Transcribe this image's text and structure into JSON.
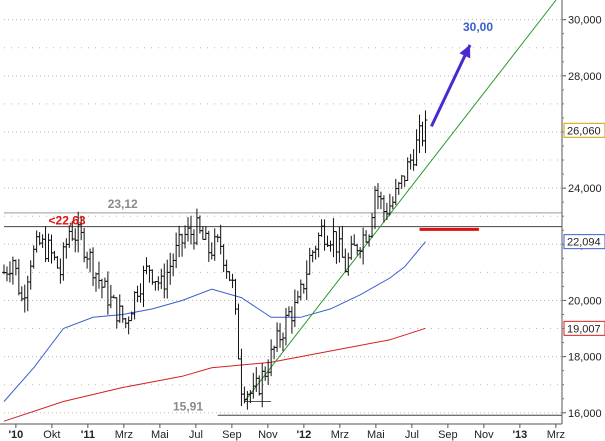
{
  "chart_data": {
    "type": "candlestick",
    "title": "",
    "xlabel": "",
    "ylabel": "",
    "ylim": [
      15600,
      30700
    ],
    "y_ticks": [
      16000,
      18000,
      20000,
      22000,
      24000,
      26000,
      28000,
      30000
    ],
    "y_tick_labels": [
      "16,000",
      "18,000",
      "20,000",
      "22,000",
      "24,000",
      "26,000",
      "28,000",
      "30,000"
    ],
    "grid": "horizontal-dotted",
    "x_tick_labels": [
      {
        "label": "'10",
        "bold": true
      },
      {
        "label": "Okt",
        "bold": false
      },
      {
        "label": "'11",
        "bold": true
      },
      {
        "label": "Mrz",
        "bold": false
      },
      {
        "label": "Mai",
        "bold": false
      },
      {
        "label": "Jul",
        "bold": false
      },
      {
        "label": "Sep",
        "bold": false
      },
      {
        "label": "Nov",
        "bold": false
      },
      {
        "label": "'12",
        "bold": true
      },
      {
        "label": "Mrz",
        "bold": false
      },
      {
        "label": "Mai",
        "bold": false
      },
      {
        "label": "Jul",
        "bold": false
      },
      {
        "label": "Sep",
        "bold": false
      },
      {
        "label": "Nov",
        "bold": false
      },
      {
        "label": "'13",
        "bold": true
      },
      {
        "label": "Mrz",
        "bold": false
      }
    ],
    "price_anchors": [
      [
        0,
        21000
      ],
      [
        3,
        21500
      ],
      [
        6,
        20000
      ],
      [
        9,
        21500
      ],
      [
        12,
        22000
      ],
      [
        15,
        21800
      ],
      [
        19,
        21000
      ],
      [
        22,
        22500
      ],
      [
        26,
        22200
      ],
      [
        29,
        21500
      ],
      [
        33,
        20500
      ],
      [
        37,
        19800
      ],
      [
        41,
        19200
      ],
      [
        45,
        20500
      ],
      [
        49,
        21200
      ],
      [
        53,
        20500
      ],
      [
        57,
        21500
      ],
      [
        61,
        22300
      ],
      [
        65,
        22500
      ],
      [
        69,
        21800
      ],
      [
        73,
        22000
      ],
      [
        77,
        20500
      ],
      [
        80,
        17000
      ],
      [
        84,
        16600
      ],
      [
        88,
        17500
      ],
      [
        92,
        18500
      ],
      [
        96,
        19500
      ],
      [
        99,
        19800
      ],
      [
        103,
        21500
      ],
      [
        107,
        22500
      ],
      [
        111,
        22300
      ],
      [
        115,
        21200
      ],
      [
        119,
        22000
      ],
      [
        123,
        22600
      ],
      [
        125,
        24000
      ],
      [
        128,
        23200
      ],
      [
        131,
        23500
      ],
      [
        134,
        24200
      ],
      [
        137,
        25000
      ],
      [
        140,
        25800
      ],
      [
        142,
        26060
      ]
    ],
    "series": [
      {
        "name": "",
        "color": "#3a5fcd",
        "values": [
          [
            0,
            16400
          ],
          [
            10,
            17600
          ],
          [
            20,
            19000
          ],
          [
            30,
            19400
          ],
          [
            40,
            19500
          ],
          [
            50,
            19700
          ],
          [
            60,
            20000
          ],
          [
            70,
            20400
          ],
          [
            80,
            20100
          ],
          [
            90,
            19400
          ],
          [
            100,
            19400
          ],
          [
            110,
            19700
          ],
          [
            120,
            20200
          ],
          [
            130,
            20800
          ],
          [
            135,
            21200
          ],
          [
            142,
            22094
          ]
        ]
      },
      {
        "name": "",
        "color": "#d42020",
        "values": [
          [
            0,
            15700
          ],
          [
            20,
            16400
          ],
          [
            40,
            16900
          ],
          [
            60,
            17300
          ],
          [
            70,
            17600
          ],
          [
            90,
            17800
          ],
          [
            110,
            18200
          ],
          [
            130,
            18600
          ],
          [
            142,
            19007
          ]
        ]
      }
    ],
    "horizontal_lines": [
      {
        "value": 23120,
        "x_start": 0,
        "x_end": 188,
        "color": "#9a9a9a"
      },
      {
        "value": 22630,
        "x_start": 0,
        "x_end": 188,
        "color": "#444444"
      },
      {
        "value": 15910,
        "x_start": 72,
        "x_end": 188,
        "color": "#444444"
      }
    ],
    "trendline": {
      "color": "#2a9a2a",
      "x_start": 81,
      "y_start": 16400,
      "x_end": 186,
      "y_end": 30700
    },
    "support_marker": {
      "value": 22530,
      "x_start": 140,
      "x_end": 160,
      "color": "#e01010"
    },
    "target_arrow": {
      "x_start": 144,
      "y_start": 26200,
      "x_end": 157,
      "y_end": 29100,
      "color": "#4a2ad0",
      "label": "30,00"
    },
    "value_badges": [
      {
        "value": 26060,
        "label": "26,060",
        "bg": "#ffffff",
        "border": "#d0a000",
        "color": "#222222"
      },
      {
        "value": 22094,
        "label": "22,094",
        "bg": "#ffffff",
        "border": "#3a5fcd",
        "color": "#1c3fa0"
      },
      {
        "value": 19007,
        "label": "19,007",
        "bg": "#ffffff",
        "border": "#d42020",
        "color": "#cc0000"
      }
    ],
    "annotations": [
      {
        "text": "23,12",
        "color": "#8a8a8a"
      },
      {
        "text": "<22,63",
        "color": "#e01010"
      },
      {
        "text": "15,91",
        "color": "#8a8a8a"
      }
    ]
  }
}
